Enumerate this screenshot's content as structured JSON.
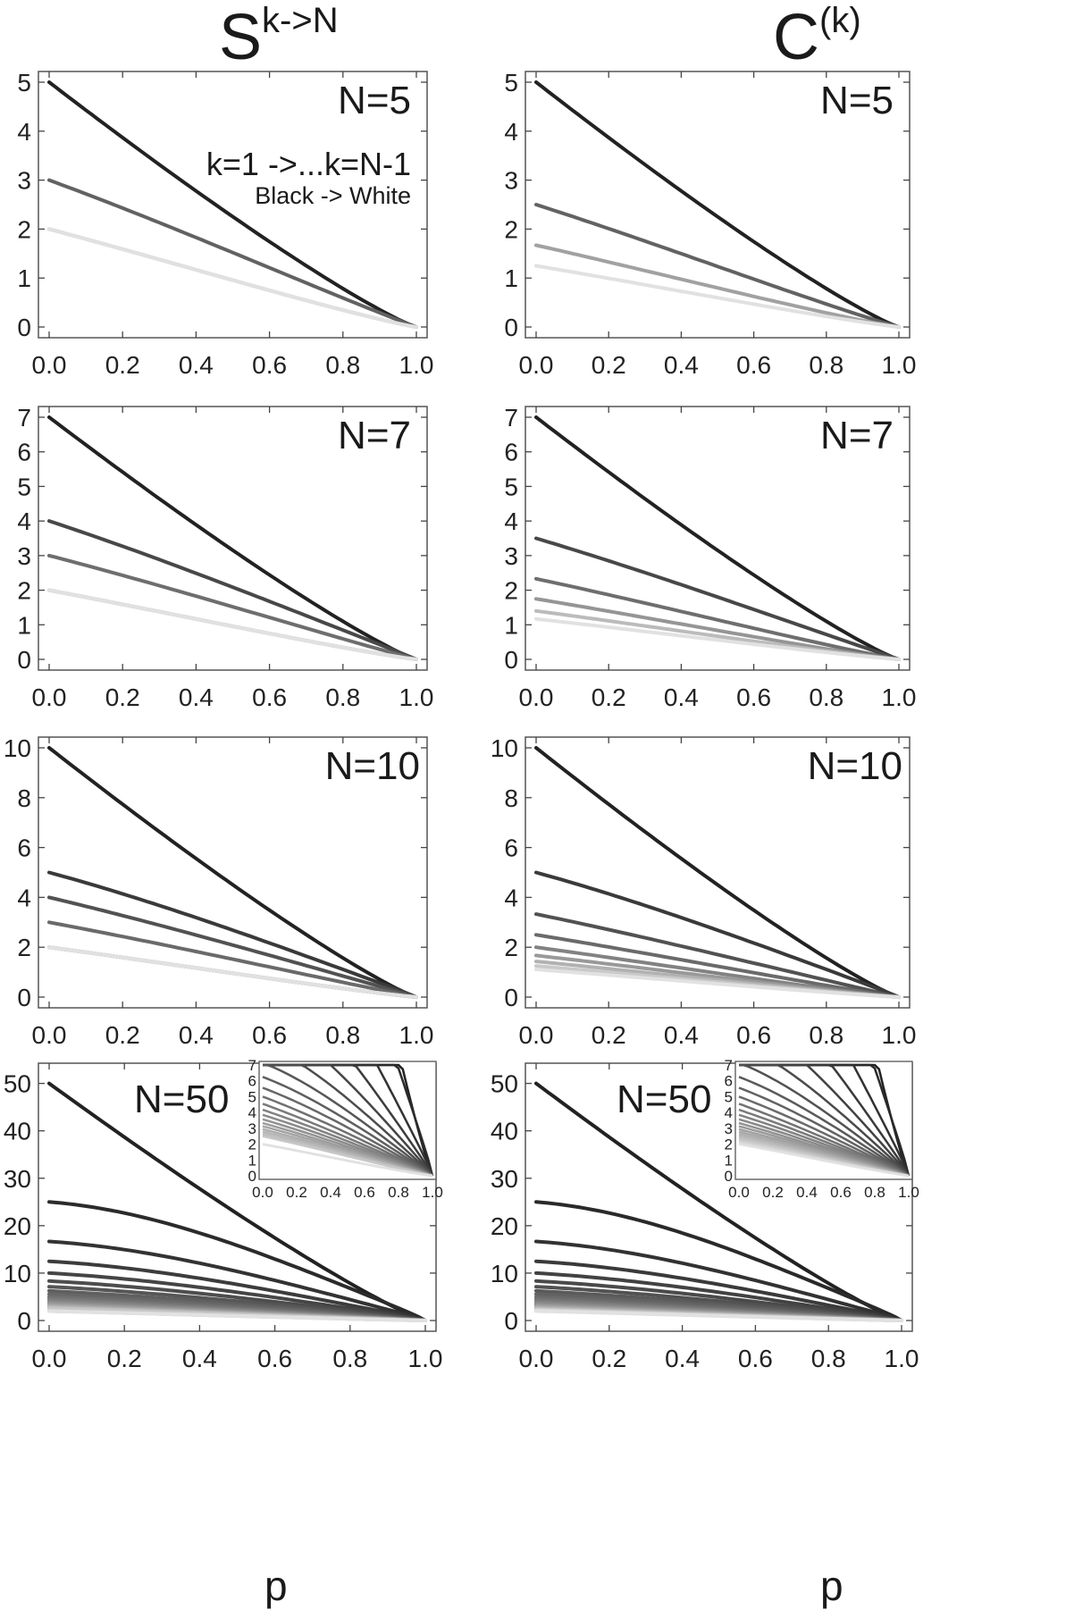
{
  "column_titles": {
    "left_base": "S",
    "left_sup": "k->N",
    "right_base": "C",
    "right_sup": "(k)"
  },
  "annotation": {
    "line1": "k=1 ->...k=N-1",
    "line2": "Black -> White"
  },
  "bottom_xlabel": "p",
  "chart_data": [
    {
      "type": "line",
      "title": "",
      "label": "N=5",
      "xlabel": "",
      "ylabel": "",
      "xlim": [
        0,
        1
      ],
      "ylim": [
        0,
        5
      ],
      "xticks": [
        0.0,
        0.2,
        0.4,
        0.6,
        0.8,
        1.0
      ],
      "yticks": [
        0,
        1,
        2,
        3,
        4,
        5
      ],
      "series": [
        {
          "y0": 5
        },
        {
          "y0": 3
        },
        {
          "y0": 2
        },
        {
          "y0": 2
        }
      ]
    },
    {
      "type": "line",
      "title": "",
      "label": "N=5",
      "xlabel": "",
      "ylabel": "",
      "xlim": [
        0,
        1
      ],
      "ylim": [
        0,
        5
      ],
      "xticks": [
        0.0,
        0.2,
        0.4,
        0.6,
        0.8,
        1.0
      ],
      "yticks": [
        0,
        1,
        2,
        3,
        4,
        5
      ],
      "series": [
        {
          "y0": 5
        },
        {
          "y0": 2.5
        },
        {
          "y0": 1.67
        },
        {
          "y0": 1.25
        }
      ]
    },
    {
      "type": "line",
      "title": "",
      "label": "N=7",
      "xlabel": "",
      "ylabel": "",
      "xlim": [
        0,
        1
      ],
      "ylim": [
        0,
        7
      ],
      "xticks": [
        0.0,
        0.2,
        0.4,
        0.6,
        0.8,
        1.0
      ],
      "yticks": [
        0,
        1,
        2,
        3,
        4,
        5,
        6,
        7
      ],
      "series": [
        {
          "y0": 7
        },
        {
          "y0": 4
        },
        {
          "y0": 3
        },
        {
          "y0": 2
        },
        {
          "y0": 2
        },
        {
          "y0": 2
        }
      ]
    },
    {
      "type": "line",
      "title": "",
      "label": "N=7",
      "xlabel": "",
      "ylabel": "",
      "xlim": [
        0,
        1
      ],
      "ylim": [
        0,
        7
      ],
      "xticks": [
        0.0,
        0.2,
        0.4,
        0.6,
        0.8,
        1.0
      ],
      "yticks": [
        0,
        1,
        2,
        3,
        4,
        5,
        6,
        7
      ],
      "series": [
        {
          "y0": 7
        },
        {
          "y0": 3.5
        },
        {
          "y0": 2.33
        },
        {
          "y0": 1.75
        },
        {
          "y0": 1.4
        },
        {
          "y0": 1.17
        }
      ]
    },
    {
      "type": "line",
      "title": "",
      "label": "N=10",
      "xlabel": "",
      "ylabel": "",
      "xlim": [
        0,
        1
      ],
      "ylim": [
        0,
        10
      ],
      "xticks": [
        0.0,
        0.2,
        0.4,
        0.6,
        0.8,
        1.0
      ],
      "yticks": [
        0,
        2,
        4,
        6,
        8,
        10
      ],
      "series": [
        {
          "y0": 10
        },
        {
          "y0": 5
        },
        {
          "y0": 4
        },
        {
          "y0": 3
        },
        {
          "y0": 2
        },
        {
          "y0": 2
        },
        {
          "y0": 2
        },
        {
          "y0": 2
        },
        {
          "y0": 2
        }
      ]
    },
    {
      "type": "line",
      "title": "",
      "label": "N=10",
      "xlabel": "",
      "ylabel": "",
      "xlim": [
        0,
        1
      ],
      "ylim": [
        0,
        10
      ],
      "xticks": [
        0.0,
        0.2,
        0.4,
        0.6,
        0.8,
        1.0
      ],
      "yticks": [
        0,
        2,
        4,
        6,
        8,
        10
      ],
      "series": [
        {
          "y0": 10
        },
        {
          "y0": 5
        },
        {
          "y0": 3.33
        },
        {
          "y0": 2.5
        },
        {
          "y0": 2
        },
        {
          "y0": 1.67
        },
        {
          "y0": 1.43
        },
        {
          "y0": 1.25
        },
        {
          "y0": 1.11
        }
      ]
    },
    {
      "type": "line",
      "title": "",
      "label": "N=50",
      "xlabel": "p",
      "ylabel": "",
      "xlim": [
        0,
        1
      ],
      "ylim": [
        0,
        52
      ],
      "xticks": [
        0.0,
        0.2,
        0.4,
        0.6,
        0.8,
        1.0
      ],
      "yticks": [
        0,
        10,
        20,
        30,
        40,
        50
      ],
      "series": [
        {
          "y0": 50
        },
        {
          "y0": 25
        },
        {
          "y0": 16.67
        },
        {
          "y0": 12.5
        },
        {
          "y0": 10
        },
        {
          "y0": 8.33
        },
        {
          "y0": 7.14
        },
        {
          "y0": 6.25
        },
        {
          "y0": 5.56
        },
        {
          "y0": 5
        },
        {
          "y0": 4.55
        },
        {
          "y0": 4.17
        },
        {
          "y0": 3.85
        },
        {
          "y0": 3.57
        },
        {
          "y0": 3.33
        },
        {
          "y0": 3.13
        },
        {
          "y0": 2.94
        },
        {
          "y0": 2.78
        },
        {
          "y0": 2.63
        },
        {
          "y0": 2.5
        },
        {
          "y0": 2
        },
        {
          "y0": 2
        },
        {
          "y0": 2
        }
      ],
      "inset": {
        "xlim": [
          0,
          1
        ],
        "ylim": [
          0,
          7
        ],
        "xticks": [
          0.0,
          0.2,
          0.4,
          0.6,
          0.8,
          1.0
        ],
        "yticks": [
          0,
          1,
          2,
          3,
          4,
          5,
          6,
          7
        ]
      }
    },
    {
      "type": "line",
      "title": "",
      "label": "N=50",
      "xlabel": "p",
      "ylabel": "",
      "xlim": [
        0,
        1
      ],
      "ylim": [
        0,
        52
      ],
      "xticks": [
        0.0,
        0.2,
        0.4,
        0.6,
        0.8,
        1.0
      ],
      "yticks": [
        0,
        10,
        20,
        30,
        40,
        50
      ],
      "series": [
        {
          "y0": 50
        },
        {
          "y0": 25
        },
        {
          "y0": 16.67
        },
        {
          "y0": 12.5
        },
        {
          "y0": 10
        },
        {
          "y0": 8.33
        },
        {
          "y0": 7.14
        },
        {
          "y0": 6.25
        },
        {
          "y0": 5.56
        },
        {
          "y0": 5
        },
        {
          "y0": 4.55
        },
        {
          "y0": 4.17
        },
        {
          "y0": 3.85
        },
        {
          "y0": 3.57
        },
        {
          "y0": 3.33
        },
        {
          "y0": 3.13
        },
        {
          "y0": 2.94
        },
        {
          "y0": 2.78
        },
        {
          "y0": 2.63
        },
        {
          "y0": 2.5
        },
        {
          "y0": 2.38
        },
        {
          "y0": 2.27
        },
        {
          "y0": 2.17
        },
        {
          "y0": 2.08
        },
        {
          "y0": 2
        }
      ],
      "inset": {
        "xlim": [
          0,
          1
        ],
        "ylim": [
          0,
          7
        ],
        "xticks": [
          0.0,
          0.2,
          0.4,
          0.6,
          0.8,
          1.0
        ],
        "yticks": [
          0,
          1,
          2,
          3,
          4,
          5,
          6,
          7
        ]
      }
    }
  ]
}
